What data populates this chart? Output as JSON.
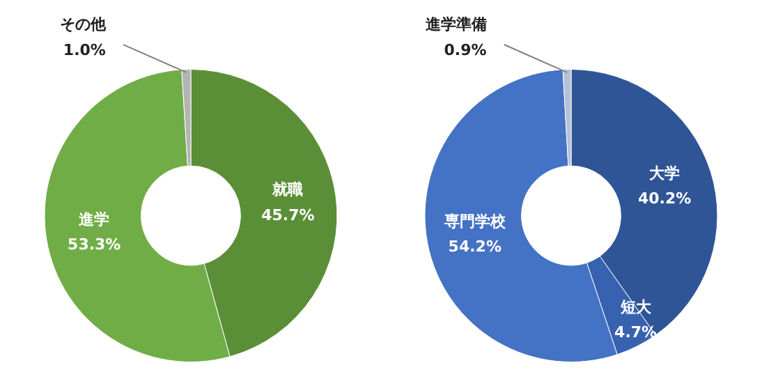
{
  "chart_data": [
    {
      "type": "donut",
      "categories": [
        "就職",
        "進学",
        "その他"
      ],
      "values": [
        45.7,
        53.3,
        1.0
      ],
      "value_labels": [
        "45.7%",
        "53.3%",
        "1.0%"
      ],
      "colors": [
        "#5b8f37",
        "#70ad47",
        "#b4b4b4"
      ]
    },
    {
      "type": "donut",
      "categories": [
        "大学",
        "短大",
        "専門学校",
        "進学準備"
      ],
      "values": [
        40.2,
        4.7,
        54.2,
        0.9
      ],
      "value_labels": [
        "40.2%",
        "4.7%",
        "54.2%",
        "0.9%"
      ],
      "colors": [
        "#2f5597",
        "#3762b0",
        "#4472c4",
        "#b4c0d8"
      ]
    }
  ]
}
